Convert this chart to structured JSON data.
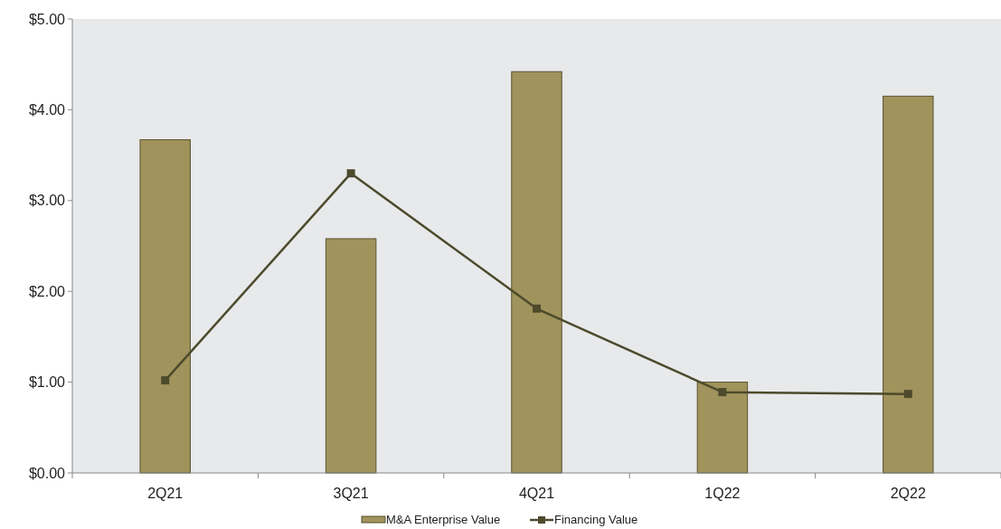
{
  "chart_data": {
    "type": "bar",
    "categories": [
      "2Q21",
      "3Q21",
      "4Q21",
      "1Q22",
      "2Q22"
    ],
    "series": [
      {
        "name": "M&A Enterprise Value",
        "color": "#a0935c",
        "values": [
          3.67,
          2.58,
          4.42,
          1.0,
          4.15
        ]
      },
      {
        "name": "Financing Value",
        "type": "line",
        "color": "#4d4a2c",
        "marker": "square",
        "values": [
          1.02,
          3.3,
          1.81,
          0.89,
          0.87
        ]
      }
    ],
    "ylim": [
      0,
      5
    ],
    "yticks": [
      {
        "value": 0,
        "label": "$0.00"
      },
      {
        "value": 1,
        "label": "$1.00"
      },
      {
        "value": 2,
        "label": "$2.00"
      },
      {
        "value": 3,
        "label": "$3.00"
      },
      {
        "value": 4,
        "label": "$4.00"
      },
      {
        "value": 5,
        "label": "$5.00"
      }
    ],
    "grid": false,
    "legend": "bottom"
  }
}
